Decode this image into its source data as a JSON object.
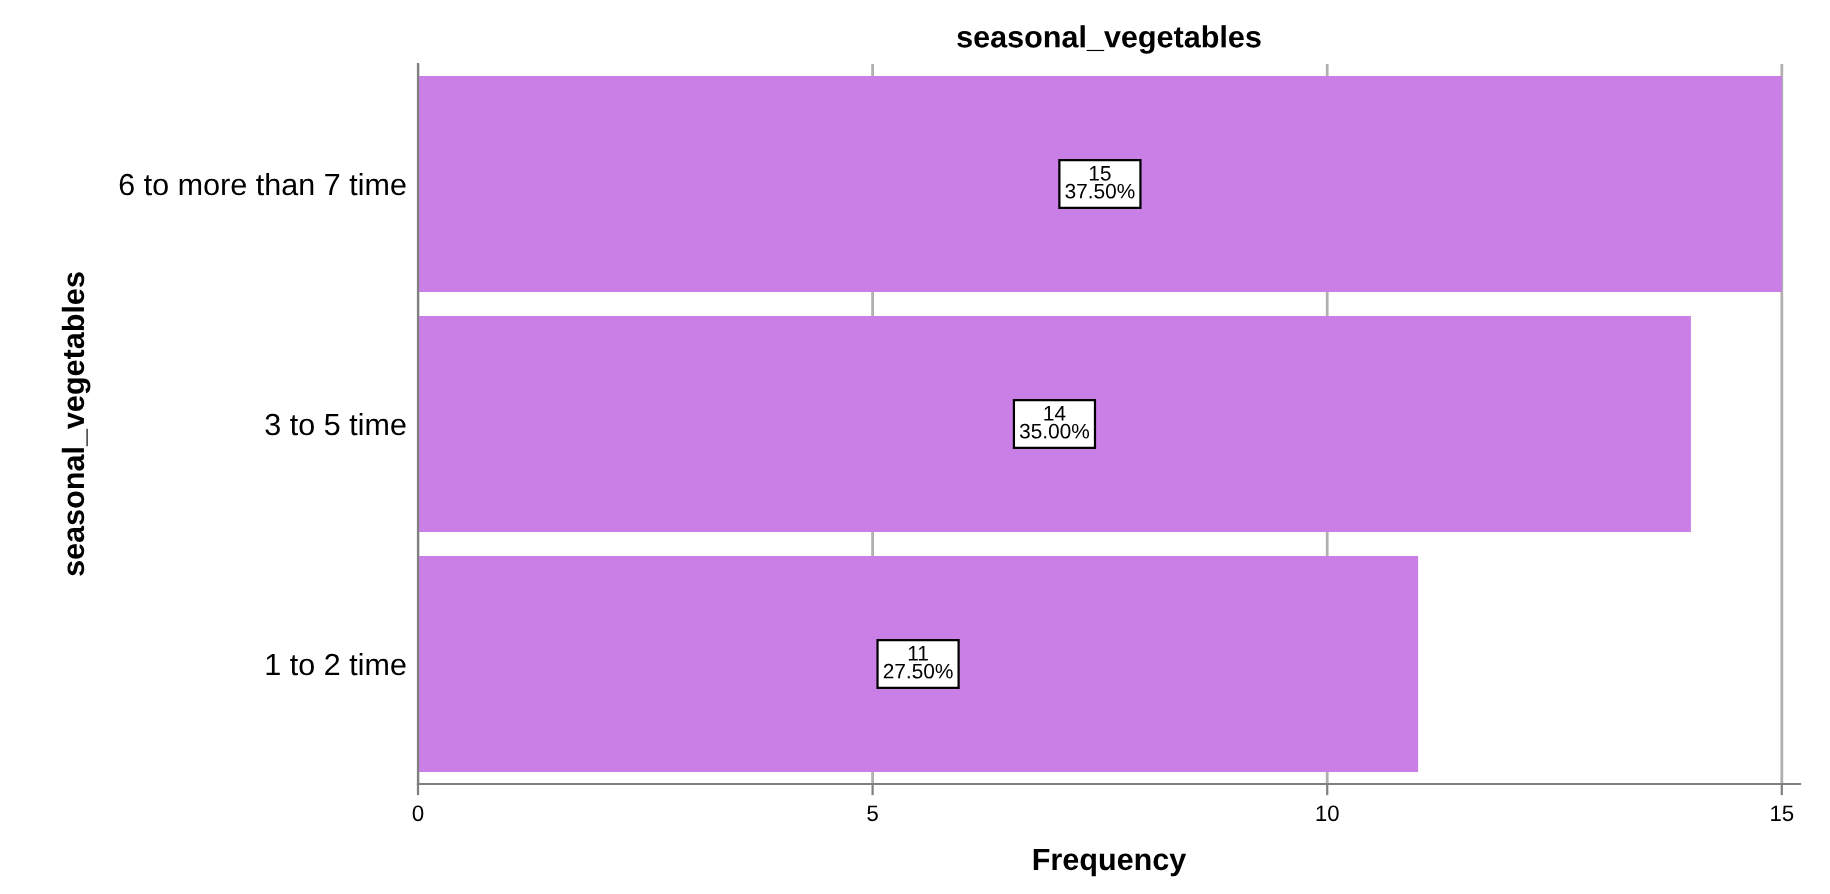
{
  "chart_data": {
    "type": "bar",
    "orientation": "horizontal",
    "title": "seasonal_vegetables",
    "xlabel": "Frequency",
    "ylabel": "seasonal_vegetables",
    "categories": [
      "6 to more than 7 time",
      "3 to 5 time",
      "1 to 2 time"
    ],
    "values": [
      15,
      14,
      11
    ],
    "color": "#c97fe6",
    "value_labels": [
      "15\n37.50%",
      "14\n35.00%",
      "11\n27.50%"
    ],
    "xlim": [
      0,
      15.2
    ],
    "xticks": [
      0,
      5,
      10,
      15
    ],
    "grid": "x"
  }
}
